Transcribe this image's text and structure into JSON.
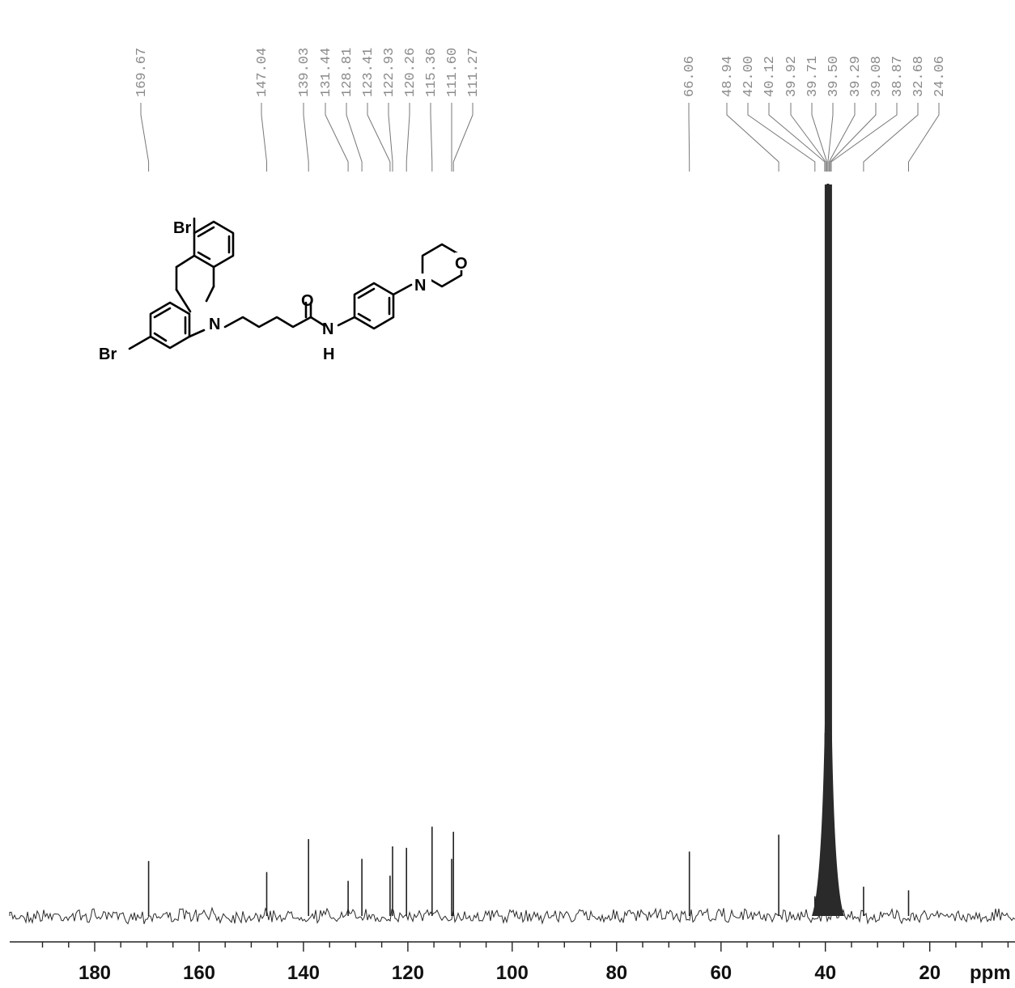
{
  "chart_data": {
    "type": "line",
    "title": "",
    "xlabel": "ppm",
    "ylabel": "",
    "x_reversed": true,
    "xlim": [
      194,
      0
    ],
    "x_ticks": [
      180,
      160,
      140,
      120,
      100,
      80,
      60,
      40,
      20
    ],
    "x_tick_labels": [
      "180",
      "160",
      "140",
      "120",
      "100",
      "80",
      "60",
      "40",
      "20"
    ],
    "grid": false,
    "peak_labels": [
      "169.67",
      "147.04",
      "139.03",
      "131.44",
      "128.81",
      "123.41",
      "122.93",
      "120.26",
      "115.36",
      "111.60",
      "111.27",
      "66.06",
      "48.94",
      "42.00",
      "40.12",
      "39.92",
      "39.71",
      "39.50",
      "39.29",
      "39.08",
      "38.87",
      "32.68",
      "24.06"
    ],
    "peaks": [
      {
        "ppm": 169.67,
        "intensity": 0.075
      },
      {
        "ppm": 147.04,
        "intensity": 0.06
      },
      {
        "ppm": 139.03,
        "intensity": 0.105
      },
      {
        "ppm": 131.44,
        "intensity": 0.048
      },
      {
        "ppm": 128.81,
        "intensity": 0.078
      },
      {
        "ppm": 123.41,
        "intensity": 0.055
      },
      {
        "ppm": 122.93,
        "intensity": 0.095
      },
      {
        "ppm": 120.26,
        "intensity": 0.093
      },
      {
        "ppm": 115.36,
        "intensity": 0.122
      },
      {
        "ppm": 111.6,
        "intensity": 0.078
      },
      {
        "ppm": 111.27,
        "intensity": 0.115
      },
      {
        "ppm": 66.06,
        "intensity": 0.088
      },
      {
        "ppm": 48.94,
        "intensity": 0.111
      },
      {
        "ppm": 42.0,
        "intensity": 0.027
      },
      {
        "ppm": 40.12,
        "intensity": 0.11
      },
      {
        "ppm": 39.92,
        "intensity": 0.25
      },
      {
        "ppm": 39.71,
        "intensity": 0.5
      },
      {
        "ppm": 39.5,
        "intensity": 1.0
      },
      {
        "ppm": 39.29,
        "intensity": 0.5
      },
      {
        "ppm": 39.08,
        "intensity": 0.25
      },
      {
        "ppm": 38.87,
        "intensity": 0.11
      },
      {
        "ppm": 32.68,
        "intensity": 0.04
      },
      {
        "ppm": 24.06,
        "intensity": 0.035
      }
    ]
  },
  "structure": {
    "atoms": [
      "Br",
      "Br",
      "N",
      "O",
      "N",
      "H",
      "N",
      "O"
    ]
  }
}
